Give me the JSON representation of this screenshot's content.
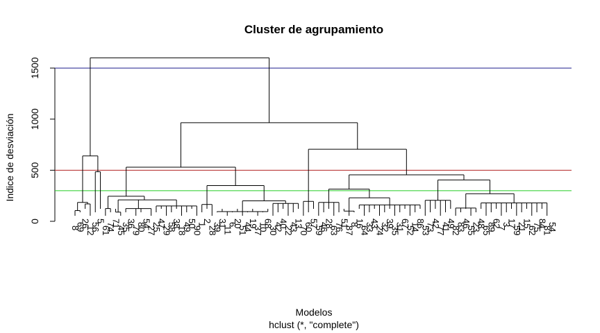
{
  "chart_data": {
    "type": "dendrogram",
    "title": "Cluster de agrupamiento",
    "xlabel": "Modelos",
    "sub": "hclust (*, \"complete\")",
    "ylabel": "Indice de desviación",
    "ylim": [
      0,
      1650
    ],
    "yticks": [
      0,
      500,
      1000,
      1500
    ],
    "grid": false,
    "cut_lines": [
      {
        "h": 1500,
        "color": "#1c1c8c"
      },
      {
        "h": 500,
        "color": "#b22222"
      },
      {
        "h": 300,
        "color": "#22cc22"
      }
    ],
    "leaves": [
      "8",
      "69",
      "26",
      "12",
      "56",
      "5",
      "61",
      "74",
      "71",
      "45",
      "35",
      "36",
      "79",
      "80",
      "54",
      "27",
      "25",
      "47",
      "29",
      "58",
      "38",
      "18",
      "49",
      "50",
      "90",
      "1",
      "2",
      "28",
      "39",
      "31",
      "11",
      "6",
      "20",
      "51",
      "44",
      "19",
      "37",
      "10",
      "68",
      "30",
      "42",
      "40",
      "22",
      "43",
      "13",
      "70",
      "60",
      "57",
      "59",
      "46",
      "28",
      "63",
      "76",
      "51",
      "87",
      "8",
      "16",
      "64",
      "33",
      "43",
      "24",
      "32",
      "39",
      "35",
      "31",
      "67",
      "52",
      "14",
      "86",
      "53",
      "73",
      "42",
      "77",
      "41",
      "49",
      "82",
      "83",
      "46",
      "55",
      "23",
      "48",
      "65",
      "89",
      "62",
      "7",
      "3",
      "17",
      "59",
      "21",
      "15",
      "62",
      "75",
      "84",
      "81",
      "54"
    ],
    "tree": {
      "h": 1600,
      "c": [
        {
          "h": 640,
          "c": [
            {
              "h": 185,
              "c": [
                {
                  "h": 105,
                  "c": [
                    {
                      "l": 0
                    },
                    {
                      "l": 1
                    }
                  ]
                },
                {
                  "h": 170,
                  "c": [
                    {
                      "l": 2
                    },
                    {
                      "l": 3
                    }
                  ]
                }
              ]
            },
            {
              "h": 485,
              "c": [
                {
                  "l": 4
                },
                {
                  "l": 5
                }
              ]
            }
          ]
        },
        {
          "h": 965,
          "c": [
            {
              "h": 530,
              "c": [
                {
                  "h": 245,
                  "c": [
                    {
                      "h": 125,
                      "c": [
                        {
                          "l": 6
                        },
                        {
                          "l": 7
                        }
                      ]
                    },
                    {
                      "h": 210,
                      "c": [
                        {
                          "h": 90,
                          "c": [
                            {
                              "l": 8
                            },
                            {
                              "l": 9
                            }
                          ]
                        },
                        {
                          "h": 125,
                          "c": [
                            {
                              "l": 10
                            },
                            {
                              "l": 11
                            },
                            {
                              "l": 12
                            },
                            {
                              "l": 13
                            },
                            {
                              "l": 14
                            },
                            {
                              "l": 15
                            }
                          ]
                        },
                        {
                          "h": 150,
                          "c": [
                            {
                              "l": 16
                            },
                            {
                              "l": 17
                            },
                            {
                              "l": 18
                            },
                            {
                              "l": 19
                            },
                            {
                              "l": 20
                            },
                            {
                              "l": 21
                            },
                            {
                              "l": 22
                            },
                            {
                              "l": 23
                            },
                            {
                              "l": 24
                            }
                          ]
                        }
                      ]
                    }
                  ]
                },
                {
                  "h": 350,
                  "c": [
                    {
                      "h": 165,
                      "c": [
                        {
                          "l": 25
                        },
                        {
                          "l": 26
                        },
                        {
                          "l": 27
                        }
                      ]
                    },
                    {
                      "h": 200,
                      "c": [
                        {
                          "h": 95,
                          "c": [
                            {
                              "l": 28
                            },
                            {
                              "l": 29
                            },
                            {
                              "l": 30
                            },
                            {
                              "l": 31
                            },
                            {
                              "l": 32
                            },
                            {
                              "l": 33
                            },
                            {
                              "l": 34
                            },
                            {
                              "l": 35
                            },
                            {
                              "l": 36
                            },
                            {
                              "l": 37
                            },
                            {
                              "l": 38
                            }
                          ]
                        },
                        {
                          "h": 175,
                          "c": [
                            {
                              "l": 39
                            },
                            {
                              "l": 40
                            },
                            {
                              "l": 41
                            },
                            {
                              "l": 42
                            },
                            {
                              "l": 43
                            },
                            {
                              "l": 44
                            }
                          ]
                        }
                      ]
                    }
                  ]
                }
              ]
            },
            {
              "h": 705,
              "c": [
                {
                  "h": 280,
                  "c": [
                    {
                      "h": 195,
                      "c": [
                        {
                          "l": 45
                        },
                        {
                          "l": 46
                        },
                        {
                          "l": 47
                        }
                      ]
                    }
                  ]
                },
                {
                  "h": 455,
                  "c": [
                    {
                      "h": 315,
                      "c": [
                        {
                          "h": 185,
                          "c": [
                            {
                              "l": 48
                            },
                            {
                              "l": 49
                            },
                            {
                              "l": 50
                            },
                            {
                              "l": 51
                            },
                            {
                              "l": 52
                            }
                          ]
                        },
                        {
                          "h": 230,
                          "c": [
                            {
                              "h": 100,
                              "c": [
                                {
                                  "l": 53
                                },
                                {
                                  "l": 54
                                },
                                {
                                  "l": 55
                                }
                              ]
                            },
                            {
                              "h": 160,
                              "c": [
                                {
                                  "l": 56
                                },
                                {
                                  "l": 57
                                },
                                {
                                  "l": 58
                                },
                                {
                                  "l": 59
                                },
                                {
                                  "l": 60
                                },
                                {
                                  "l": 61
                                },
                                {
                                  "l": 62
                                },
                                {
                                  "l": 63
                                },
                                {
                                  "l": 64
                                },
                                {
                                  "l": 65
                                },
                                {
                                  "l": 66
                                },
                                {
                                  "l": 67
                                },
                                {
                                  "l": 68
                                }
                              ]
                            }
                          ]
                        }
                      ]
                    },
                    {
                      "h": 405,
                      "c": [
                        {
                          "h": 205,
                          "c": [
                            {
                              "l": 69
                            },
                            {
                              "l": 70
                            },
                            {
                              "l": 71
                            },
                            {
                              "l": 72
                            },
                            {
                              "l": 73
                            },
                            {
                              "l": 74
                            }
                          ]
                        },
                        {
                          "h": 270,
                          "c": [
                            {
                              "h": 130,
                              "c": [
                                {
                                  "l": 75
                                },
                                {
                                  "l": 76
                                },
                                {
                                  "l": 77
                                },
                                {
                                  "l": 78
                                },
                                {
                                  "l": 79
                                }
                              ]
                            },
                            {
                              "h": 180,
                              "c": [
                                {
                                  "l": 80
                                },
                                {
                                  "l": 81
                                },
                                {
                                  "l": 82
                                },
                                {
                                  "l": 83
                                },
                                {
                                  "l": 84
                                },
                                {
                                  "l": 85
                                },
                                {
                                  "l": 86
                                },
                                {
                                  "l": 87
                                },
                                {
                                  "l": 88
                                },
                                {
                                  "l": 89
                                },
                                {
                                  "l": 90
                                },
                                {
                                  "l": 91
                                },
                                {
                                  "l": 92
                                },
                                {
                                  "l": 93
                                }
                              ]
                            }
                          ]
                        }
                      ]
                    }
                  ]
                }
              ]
            }
          ]
        }
      ]
    }
  }
}
